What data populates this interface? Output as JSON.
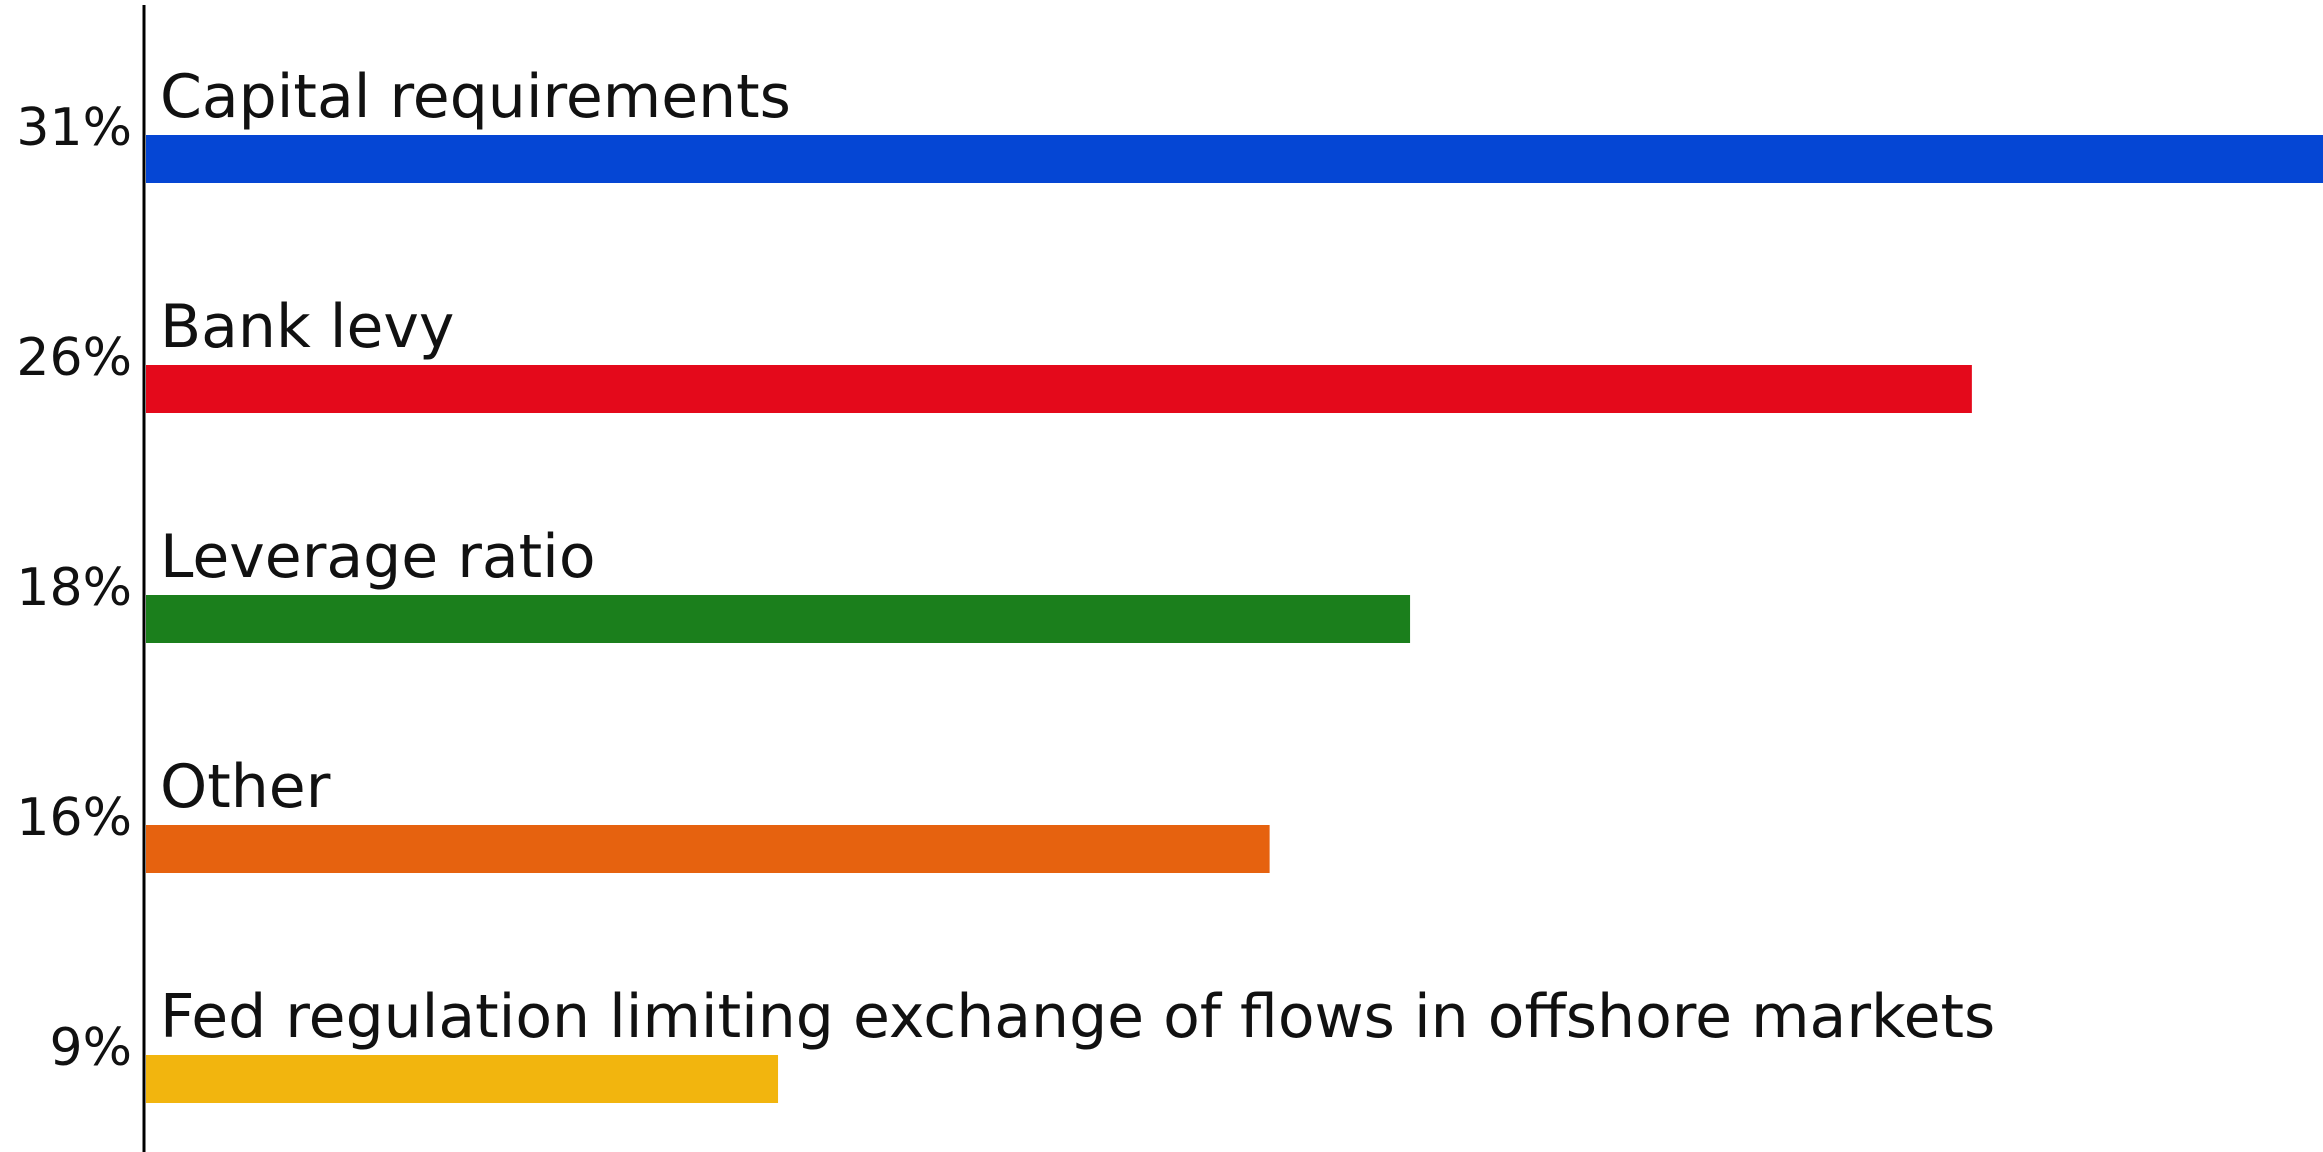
{
  "chart_data": {
    "type": "bar",
    "orientation": "horizontal",
    "categories": [
      "Capital requirements",
      "Bank levy",
      "Leverage ratio",
      "Other",
      "Fed regulation limiting exchange of flows in offshore markets"
    ],
    "values": [
      31,
      26,
      18,
      16,
      9
    ],
    "value_labels": [
      "31%",
      "26%",
      "18%",
      "16%",
      "9%"
    ],
    "colors": [
      "#0546d4",
      "#e4091b",
      "#1b7f1c",
      "#e6620f",
      "#f2b50e"
    ],
    "unit": "%",
    "title": "",
    "xlabel": "",
    "ylabel": "",
    "xlim": [
      0,
      31
    ],
    "grid": false,
    "legend": "none"
  }
}
